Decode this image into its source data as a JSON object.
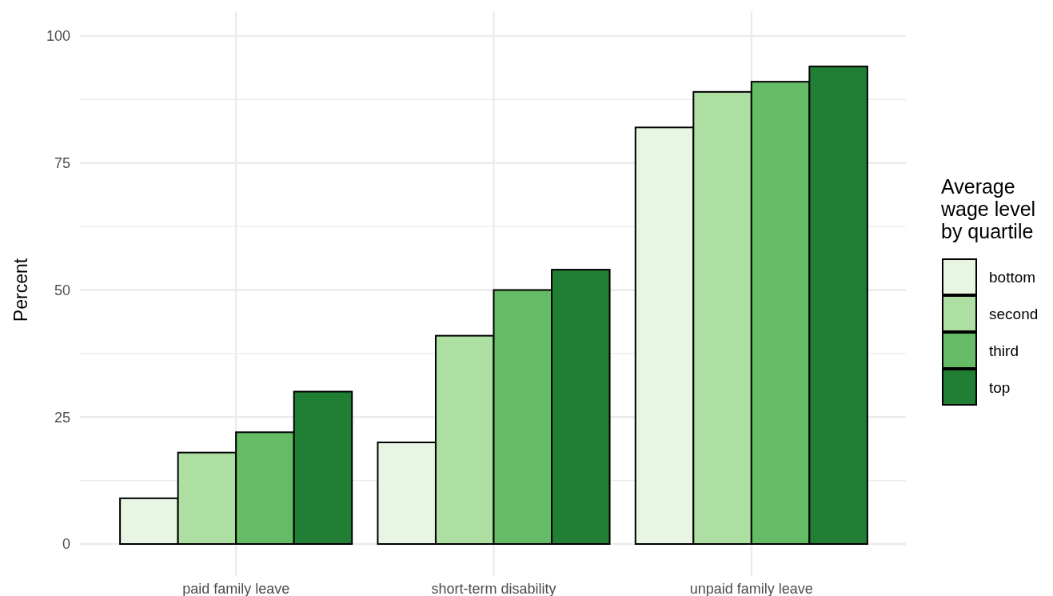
{
  "chart_data": {
    "type": "bar",
    "ylabel": "Percent",
    "legend_title": "Average\nwage level\nby quartile",
    "categories": [
      "paid family leave",
      "short-term disability",
      "unpaid family leave"
    ],
    "series": [
      {
        "name": "bottom",
        "color": "#e9f5e3",
        "values": [
          9,
          20,
          82
        ]
      },
      {
        "name": "second",
        "color": "#addfa2",
        "values": [
          18,
          41,
          89
        ]
      },
      {
        "name": "third",
        "color": "#66bb66",
        "values": [
          22,
          50,
          91
        ]
      },
      {
        "name": "top",
        "color": "#217e35",
        "values": [
          30,
          54,
          94
        ]
      }
    ],
    "ylim": [
      0,
      100
    ],
    "yticks": [
      0,
      25,
      50,
      75,
      100
    ],
    "grid": true,
    "legend": "right"
  }
}
